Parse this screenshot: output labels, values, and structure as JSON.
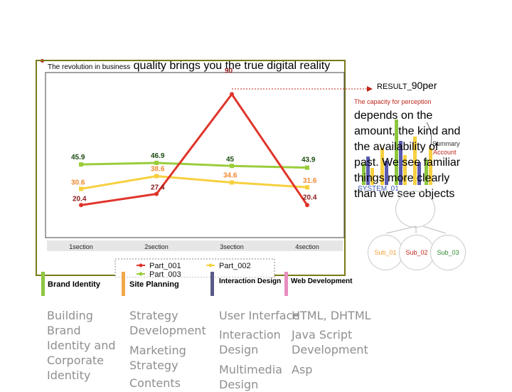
{
  "headline": {
    "small": "The revolution in business",
    "big": "quality brings you the true digital reality"
  },
  "result": {
    "prefix": "RESULT_",
    "value": "90per"
  },
  "capacity": "The capacity for perception",
  "body_text": "depends on the amount, the kind and the availability of past. We see familiar things more clearly than we see objects",
  "overlay": {
    "summary": "Summary",
    "account": "Account",
    "system": "SYSTEM_01",
    "subs": [
      "Sub_01",
      "Sub_02",
      "Sub_03"
    ],
    "sub_colors": [
      "#f0a030",
      "#c0261b",
      "#2f8a2f"
    ]
  },
  "chart_data": {
    "type": "line",
    "categories": [
      "1section",
      "2section",
      "3section",
      "4section"
    ],
    "series": [
      {
        "name": "Part_001",
        "color": "#e0342a",
        "label_color": "#8b1a1a",
        "values": [
          20.4,
          27.4,
          90,
          20.4
        ]
      },
      {
        "name": "Part_002",
        "color": "#f7d040",
        "label_color": "#ee8a30",
        "values": [
          30.6,
          38.6,
          34.6,
          31.6
        ]
      },
      {
        "name": "Part_003",
        "color": "#9acd3c",
        "label_color": "#1d4a10",
        "values": [
          45.9,
          46.9,
          45,
          43.9
        ]
      }
    ],
    "ylim": [
      0,
      100
    ],
    "legend_position": "bottom"
  },
  "categories": [
    {
      "title": "Brand Identity",
      "color": "#8dc63f",
      "items": [
        "Building Brand Identity and Corporate Identity"
      ]
    },
    {
      "title": "Site Planning",
      "color": "#f0a848",
      "items": [
        "Strategy Development",
        "Marketing Strategy",
        "Contents"
      ]
    },
    {
      "title": "Interaction Design",
      "color": "#5a5a8a",
      "items": [
        "User Interface",
        "Interaction Design",
        "Multimedia Design"
      ]
    },
    {
      "title": "Web Development",
      "color": "#e88ec0",
      "items": [
        "HTML, DHTML",
        "Java Script Development",
        "Asp"
      ]
    }
  ]
}
